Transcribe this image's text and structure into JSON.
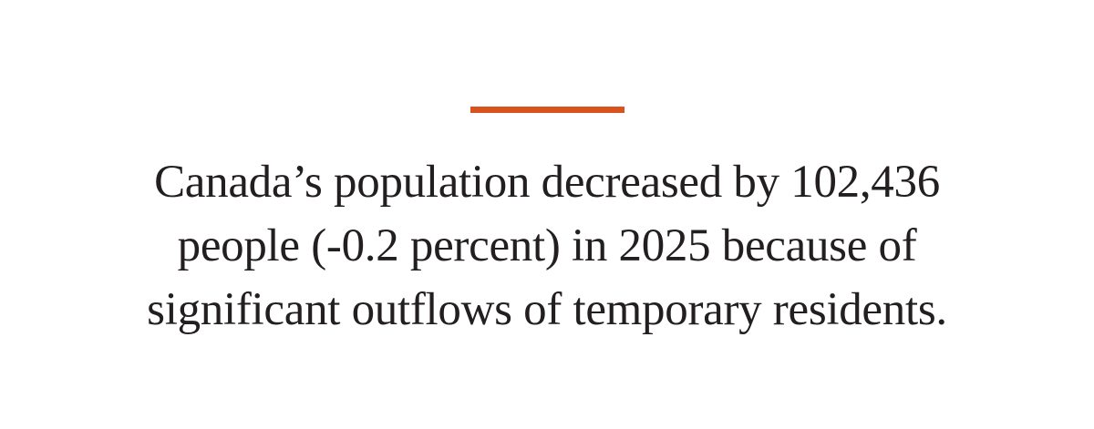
{
  "colors": {
    "accent": "#d9531e",
    "text": "#231f20",
    "background": "#ffffff"
  },
  "quote": {
    "lines": [
      "Canada’s population decreased by 102,436",
      "people (-0.2 percent) in 2025 because of",
      "significant outflows of temporary residents."
    ]
  }
}
